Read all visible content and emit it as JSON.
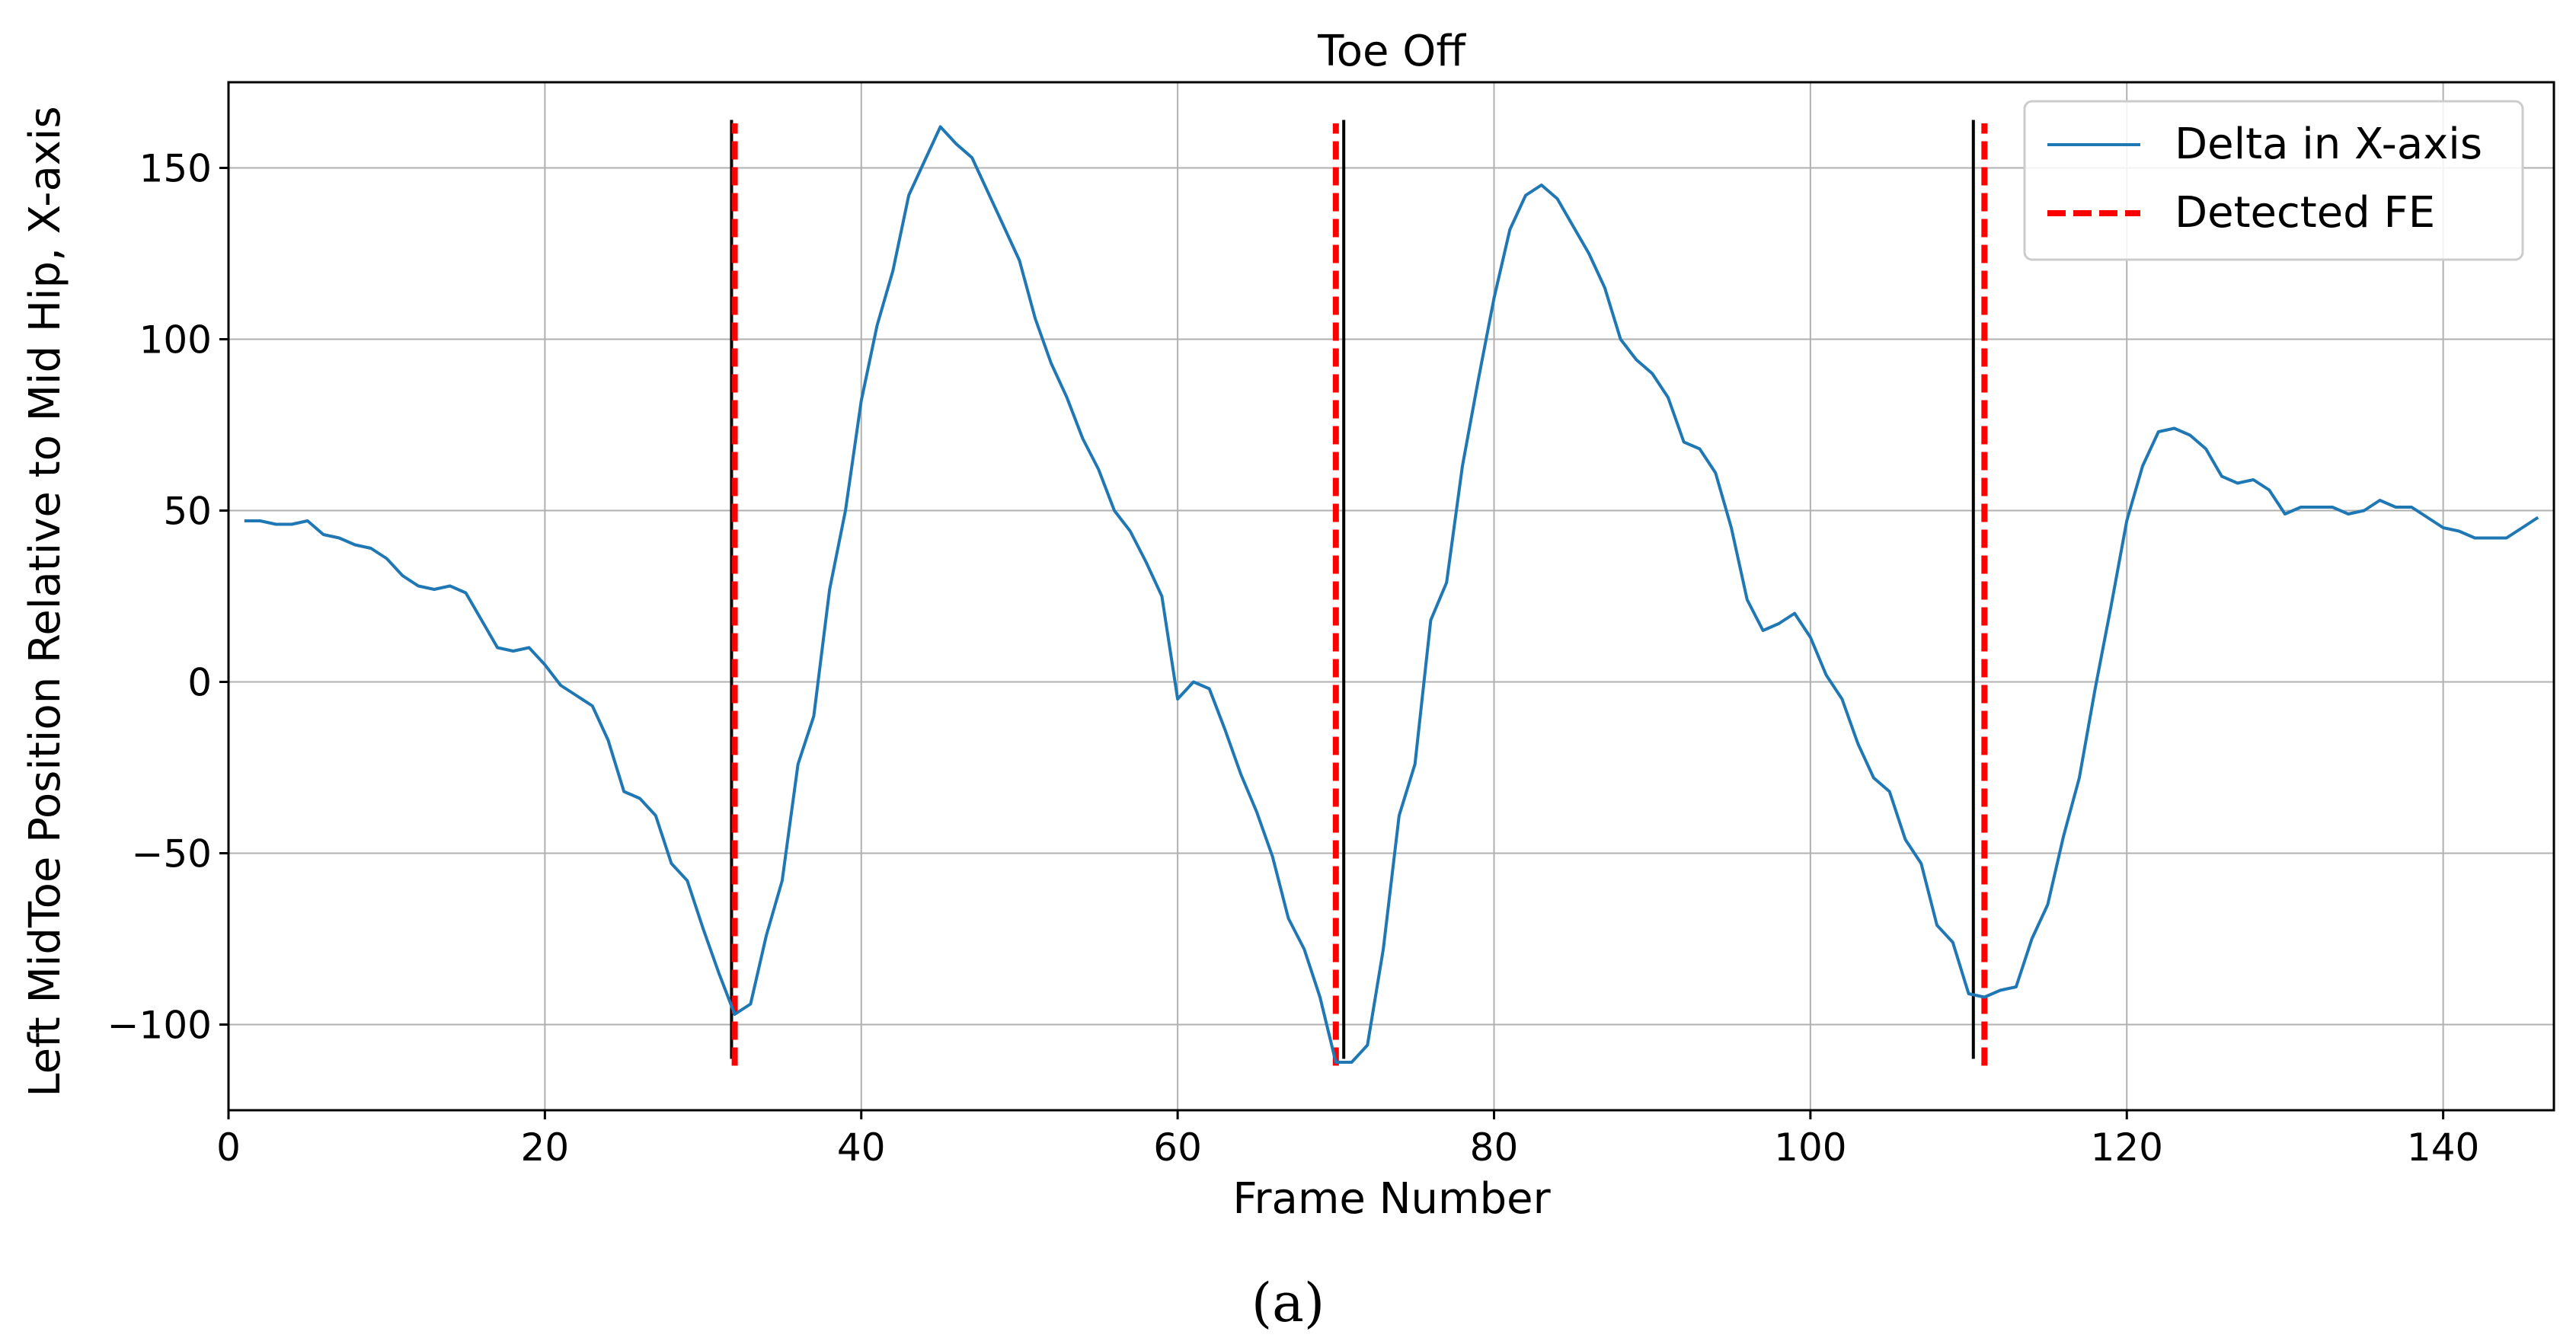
{
  "chart_data": {
    "type": "line",
    "title": "Toe Off",
    "xlabel": "Frame Number",
    "ylabel": "Left MidToe Position Relative to Mid Hip, X-axis",
    "xlim": [
      0,
      147
    ],
    "ylim": [
      -125,
      175
    ],
    "xticks": [
      0,
      20,
      40,
      60,
      80,
      100,
      120,
      140
    ],
    "yticks": [
      -100,
      -50,
      0,
      50,
      100,
      150
    ],
    "xtick_labels": [
      "0",
      "20",
      "40",
      "60",
      "80",
      "100",
      "120",
      "140"
    ],
    "ytick_labels": [
      "−100",
      "−50",
      "0",
      "50",
      "100",
      "150"
    ],
    "grid": true,
    "legend_position": "top-right",
    "series": [
      {
        "name": "Delta in X-axis",
        "color": "#1f77b4",
        "style": "solid",
        "x": [
          1,
          2,
          3,
          4,
          5,
          6,
          7,
          8,
          9,
          10,
          11,
          12,
          13,
          14,
          15,
          16,
          17,
          18,
          19,
          20,
          21,
          22,
          23,
          24,
          25,
          26,
          27,
          28,
          29,
          30,
          31,
          32,
          33,
          34,
          35,
          36,
          37,
          38,
          39,
          40,
          41,
          42,
          43,
          44,
          45,
          46,
          47,
          48,
          49,
          50,
          51,
          52,
          53,
          54,
          55,
          56,
          57,
          58,
          59,
          60,
          61,
          62,
          63,
          64,
          65,
          66,
          67,
          68,
          69,
          70,
          71,
          72,
          73,
          74,
          75,
          76,
          77,
          78,
          79,
          80,
          81,
          82,
          83,
          84,
          85,
          86,
          87,
          88,
          89,
          90,
          91,
          92,
          93,
          94,
          95,
          96,
          97,
          98,
          99,
          100,
          101,
          102,
          103,
          104,
          105,
          106,
          107,
          108,
          109,
          110,
          111,
          112,
          113,
          114,
          115,
          116,
          117,
          118,
          119,
          120,
          121,
          122,
          123,
          124,
          125,
          126,
          127,
          128,
          129,
          130,
          131,
          132,
          133,
          134,
          135,
          136,
          137,
          138,
          139,
          140,
          141,
          142,
          143,
          144,
          145,
          146
        ],
        "y": [
          47,
          47,
          46,
          46,
          47,
          43,
          42,
          40,
          39,
          36,
          31,
          28,
          27,
          28,
          26,
          18,
          10,
          9,
          10,
          5,
          -1,
          -4,
          -7,
          -17,
          -32,
          -34,
          -39,
          -53,
          -58,
          -72,
          -85,
          -97,
          -94,
          -74,
          -58,
          -24,
          -10,
          27,
          50,
          82,
          104,
          120,
          142,
          152,
          162,
          157,
          153,
          143,
          133,
          123,
          106,
          93,
          83,
          71,
          62,
          50,
          44,
          35,
          25,
          -5,
          0,
          -2,
          -14,
          -27,
          -38,
          -51,
          -69,
          -78,
          -92,
          -111,
          -111,
          -106,
          -78,
          -39,
          -24,
          18,
          29,
          63,
          88,
          112,
          132,
          142,
          145,
          141,
          133,
          125,
          115,
          100,
          94,
          90,
          83,
          70,
          68,
          61,
          45,
          24,
          15,
          17,
          20,
          13,
          2,
          -5,
          -18,
          -28,
          -32,
          -46,
          -53,
          -71,
          -76,
          -91,
          -92,
          -90,
          -89,
          -75,
          -65,
          -45,
          -28,
          -2,
          22,
          47,
          63,
          73,
          74,
          72,
          68,
          60,
          58,
          59,
          56,
          49,
          51,
          51,
          51,
          49,
          50,
          53,
          51,
          51,
          48,
          45,
          44,
          42,
          42,
          42,
          45,
          48
        ]
      },
      {
        "name": "Detected FE",
        "color": "#ff0000",
        "style": "dashed",
        "vlines": [
          32,
          70,
          111
        ]
      },
      {
        "color": "#000000",
        "style": "solid-thin",
        "vlines": [
          31.8,
          70.5,
          110.3
        ]
      }
    ]
  },
  "caption": "(a)"
}
